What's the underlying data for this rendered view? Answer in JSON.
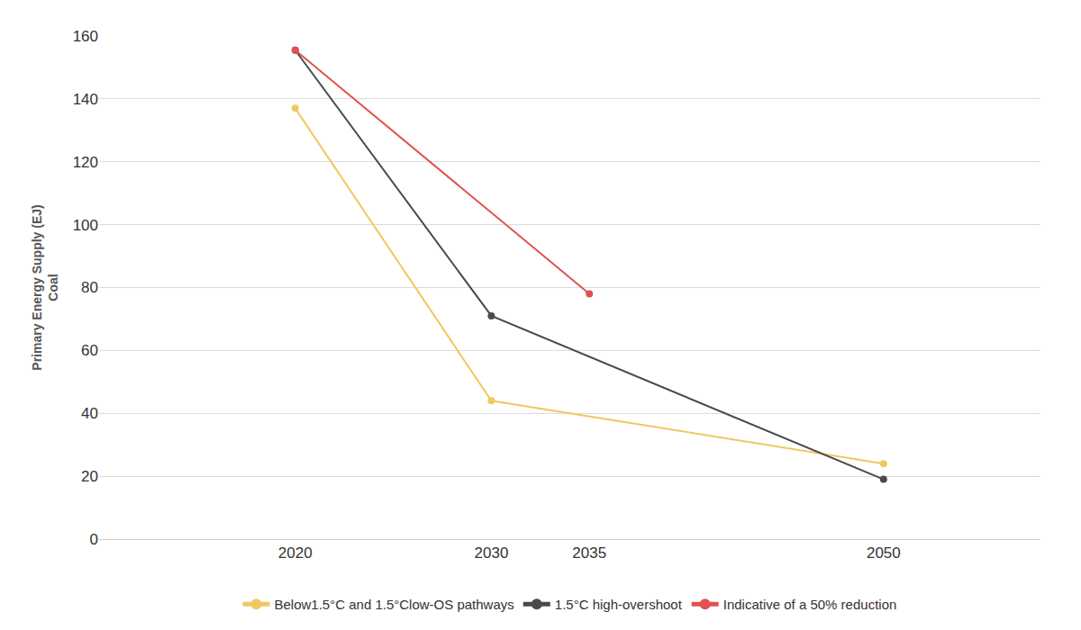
{
  "chart_data": {
    "type": "line",
    "y_label": [
      "Primary Energy Supply (EJ)",
      "Coal"
    ],
    "series": [
      {
        "name": "Below1.5°C and 1.5°Clow-OS pathways",
        "color": "#f0c862",
        "x": [
          2020,
          2030,
          2050
        ],
        "values": [
          137,
          44,
          24
        ]
      },
      {
        "name": "1.5°C high-overshoot",
        "color": "#4a4a4a",
        "x": [
          2020,
          2030,
          2050
        ],
        "values": [
          155.5,
          71,
          19
        ]
      },
      {
        "name": "Indicative of a 50% reduction",
        "color": "#e05252",
        "x": [
          2020,
          2035
        ],
        "values": [
          155.5,
          78
        ]
      }
    ],
    "xlim": [
      2010,
      2058
    ],
    "xticks": [
      2020,
      2030,
      2035,
      2050
    ],
    "ylim": [
      0,
      160
    ],
    "yticks": [
      0,
      20,
      40,
      60,
      80,
      100,
      120,
      140,
      160
    ],
    "grid": true,
    "legend": "bottom",
    "marker": "circle"
  }
}
